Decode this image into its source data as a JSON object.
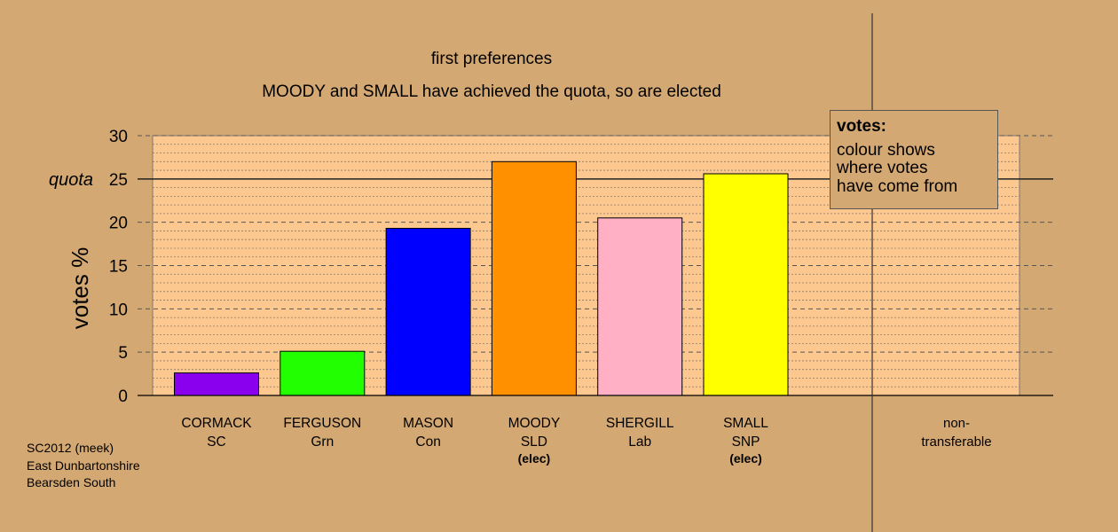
{
  "chart_data": {
    "type": "bar",
    "title": "first preferences",
    "subtitle": "MOODY and SMALL have achieved the quota, so are elected",
    "ylabel": "votes %",
    "xlabel": "",
    "ylim": [
      0,
      30
    ],
    "yticks": [
      0,
      5,
      10,
      15,
      20,
      25,
      30
    ],
    "quota": {
      "value": 25,
      "label": "quota"
    },
    "categories": [
      {
        "name": "CORMACK",
        "party": "SC",
        "elected": "",
        "color": "#8a00ee",
        "value": 2.6
      },
      {
        "name": "FERGUSON",
        "party": "Grn",
        "elected": "",
        "color": "#22ff00",
        "value": 5.1
      },
      {
        "name": "MASON",
        "party": "Con",
        "elected": "",
        "color": "#0000ff",
        "value": 19.3
      },
      {
        "name": "MOODY",
        "party": "SLD",
        "elected": "(elec)",
        "color": "#ff9100",
        "value": 27.0
      },
      {
        "name": "SHERGILL",
        "party": "Lab",
        "elected": "",
        "color": "#ffb0c4",
        "value": 20.5
      },
      {
        "name": "SMALL",
        "party": "SNP",
        "elected": "(elec)",
        "color": "#ffff00",
        "value": 25.6
      }
    ],
    "nontransferable": {
      "line1": "non-",
      "line2": "transferable",
      "value": 0
    },
    "colors": {
      "background": "#d4a873",
      "plot_background": "#fdc890",
      "grid": "#555555"
    }
  },
  "legend": {
    "title": "votes:",
    "lines": [
      "colour shows",
      "where votes",
      "have come from"
    ]
  },
  "footer": {
    "line1": "SC2012 (meek)",
    "line2": "East Dunbartonshire",
    "line3": "Bearsden South"
  }
}
